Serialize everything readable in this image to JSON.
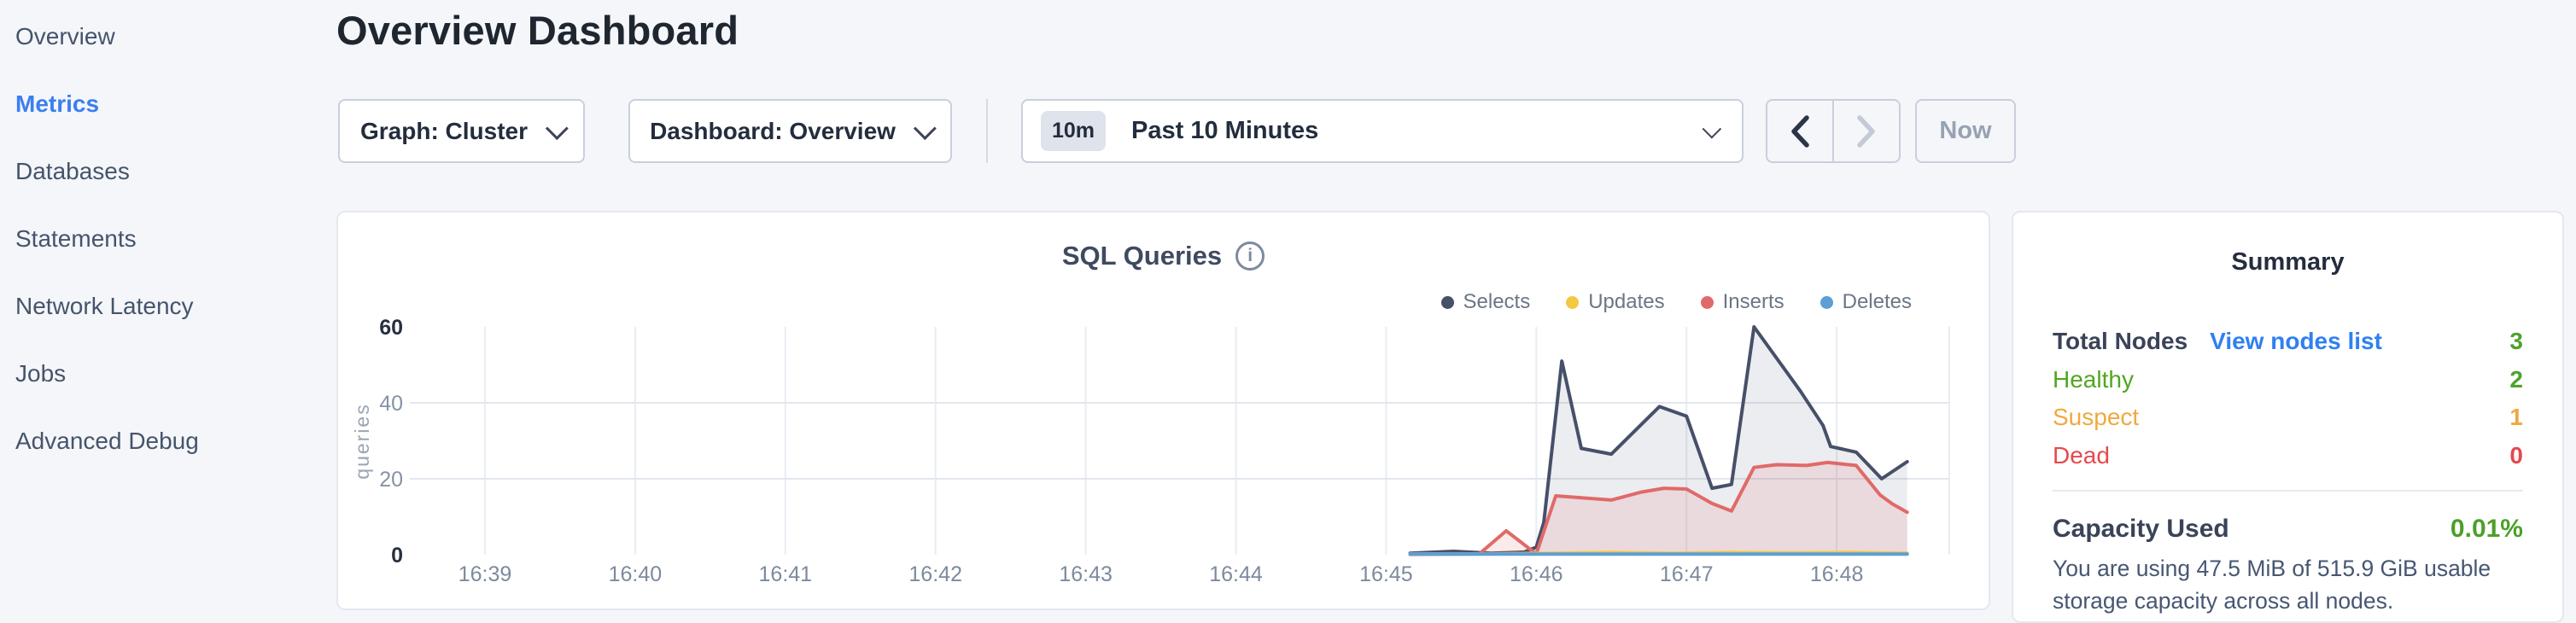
{
  "sidebar": {
    "items": [
      {
        "label": "Overview",
        "active": false
      },
      {
        "label": "Metrics",
        "active": true
      },
      {
        "label": "Databases",
        "active": false
      },
      {
        "label": "Statements",
        "active": false
      },
      {
        "label": "Network Latency",
        "active": false
      },
      {
        "label": "Jobs",
        "active": false
      },
      {
        "label": "Advanced Debug",
        "active": false
      }
    ],
    "active_color": "#3b7ef0",
    "text_color": "#46546b"
  },
  "header": {
    "title": "Overview Dashboard"
  },
  "controls": {
    "graph_dropdown": {
      "label": "Graph: Cluster",
      "icon": "chevron-down-icon"
    },
    "dashboard_dropdown": {
      "label": "Dashboard: Overview",
      "icon": "chevron-down-icon"
    },
    "time_selector": {
      "badge": "10m",
      "label": "Past 10 Minutes",
      "icon": "chevron-down-icon"
    },
    "prev_button": {
      "icon": "chevron-left-icon",
      "enabled": true,
      "color": "#2c3547"
    },
    "next_button": {
      "icon": "chevron-right-icon",
      "enabled": false,
      "color": "#c3cad6"
    },
    "now_button": {
      "label": "Now",
      "enabled": false
    }
  },
  "chart_card": {
    "title": "SQL Queries",
    "info_icon": "info-icon",
    "info_glyph": "i"
  },
  "chart_data": {
    "type": "area",
    "title": "SQL Queries",
    "xlabel": "",
    "ylabel": "queries",
    "ylim": [
      0,
      60
    ],
    "y_ticks": [
      0,
      20,
      40,
      60
    ],
    "y_ticks_emphasized": [
      0,
      60
    ],
    "grid": "vertical-per-minute-plus-horizontal-20-40",
    "legend_position": "top-right",
    "time_note": "t = minutes after 16:38:30; window is Past 10 Minutes ending ~16:48:30",
    "x_range_t": [
      0,
      10.25
    ],
    "x_ticks": [
      {
        "t": 0.5,
        "label": "16:39"
      },
      {
        "t": 1.5,
        "label": "16:40"
      },
      {
        "t": 2.5,
        "label": "16:41"
      },
      {
        "t": 3.5,
        "label": "16:42"
      },
      {
        "t": 4.5,
        "label": "16:43"
      },
      {
        "t": 5.5,
        "label": "16:44"
      },
      {
        "t": 6.5,
        "label": "16:45"
      },
      {
        "t": 7.5,
        "label": "16:46"
      },
      {
        "t": 8.5,
        "label": "16:47"
      },
      {
        "t": 9.5,
        "label": "16:48"
      }
    ],
    "series": [
      {
        "name": "Selects",
        "color": "#475069",
        "fill": "rgba(71,80,105,0.10)",
        "points": [
          [
            6.66,
            0.4
          ],
          [
            6.95,
            0.9
          ],
          [
            7.2,
            0.4
          ],
          [
            7.42,
            0.7
          ],
          [
            7.5,
            2.0
          ],
          [
            7.55,
            8.5
          ],
          [
            7.67,
            51
          ],
          [
            7.8,
            28
          ],
          [
            8.0,
            26.5
          ],
          [
            8.32,
            39
          ],
          [
            8.5,
            36.5
          ],
          [
            8.67,
            17.5
          ],
          [
            8.8,
            18.5
          ],
          [
            8.95,
            60
          ],
          [
            9.26,
            43
          ],
          [
            9.41,
            34
          ],
          [
            9.46,
            28.5
          ],
          [
            9.63,
            27
          ],
          [
            9.8,
            20
          ],
          [
            9.97,
            24.5
          ]
        ]
      },
      {
        "name": "Updates",
        "color": "#f5c843",
        "fill": "rgba(245,200,67,0.25)",
        "points": [
          [
            6.66,
            0.2
          ],
          [
            7.2,
            0.2
          ],
          [
            7.6,
            0.4
          ],
          [
            8.0,
            0.6
          ],
          [
            8.4,
            0.4
          ],
          [
            8.8,
            0.6
          ],
          [
            9.2,
            0.5
          ],
          [
            9.6,
            0.6
          ],
          [
            9.97,
            0.4
          ]
        ]
      },
      {
        "name": "Inserts",
        "color": "#e06a69",
        "fill": "rgba(224,106,105,0.14)",
        "points": [
          [
            6.66,
            0.1
          ],
          [
            7.12,
            0.2
          ],
          [
            7.3,
            6.3
          ],
          [
            7.5,
            0.2
          ],
          [
            7.63,
            15.5
          ],
          [
            7.8,
            15.0
          ],
          [
            8.0,
            14.4
          ],
          [
            8.2,
            16.5
          ],
          [
            8.35,
            17.5
          ],
          [
            8.5,
            17.3
          ],
          [
            8.67,
            13.5
          ],
          [
            8.8,
            11.5
          ],
          [
            8.95,
            23
          ],
          [
            9.1,
            23.7
          ],
          [
            9.3,
            23.5
          ],
          [
            9.44,
            24.3
          ],
          [
            9.63,
            23.5
          ],
          [
            9.79,
            15.7
          ],
          [
            9.87,
            13.4
          ],
          [
            9.97,
            11.2
          ]
        ]
      },
      {
        "name": "Deletes",
        "color": "#5b9fd6",
        "fill": "rgba(91,159,214,0.18)",
        "points": [
          [
            6.66,
            0.15
          ],
          [
            8.3,
            0.15
          ],
          [
            9.97,
            0.15
          ]
        ]
      }
    ],
    "draw_order": [
      0,
      2,
      1,
      3
    ],
    "axis_colors": {
      "tick": "#7d8a9e",
      "tick_bold": "#27303f",
      "tick_muted": "#8593a5",
      "ylabel": "#9aa5b5",
      "grid_v": "#e9ecf2",
      "grid_h": "#e2e7ee"
    }
  },
  "summary": {
    "title": "Summary",
    "node_rows": [
      {
        "label": "Total Nodes",
        "link": "View nodes list",
        "value": "3",
        "label_color": "#3a4357",
        "value_color": "#4da32b",
        "header": true
      },
      {
        "label": "Healthy",
        "value": "2",
        "label_color": "#51a620",
        "value_color": "#4da32b",
        "header": false
      },
      {
        "label": "Suspect",
        "value": "1",
        "label_color": "#f0a93f",
        "value_color": "#f0a93f",
        "header": false
      },
      {
        "label": "Dead",
        "value": "0",
        "label_color": "#e5494d",
        "value_color": "#e5494d",
        "header": false
      }
    ],
    "capacity": {
      "label": "Capacity Used",
      "value": "0.01%",
      "description": "You are using 47.5 MiB of 515.9 GiB usable storage capacity across all nodes."
    },
    "link_color": "#2f80f1"
  }
}
